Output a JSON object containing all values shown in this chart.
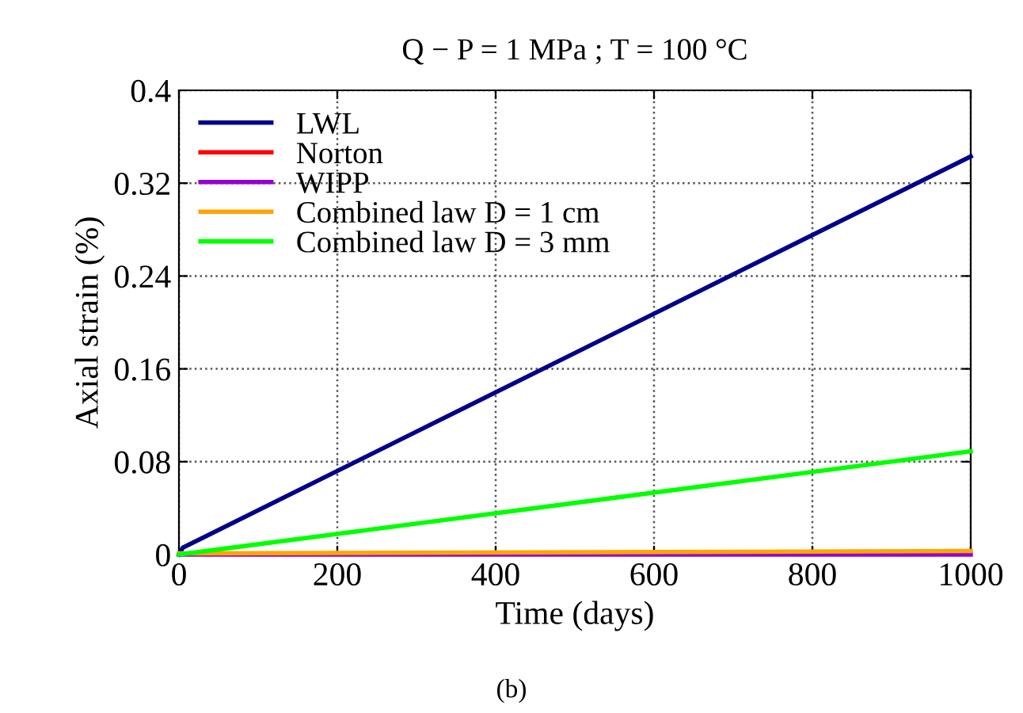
{
  "chart_data": {
    "type": "line",
    "title": "Q − P = 1 MPa ; T = 100 °C",
    "xlabel": "Time (days)",
    "ylabel": "Axial strain (%)",
    "annotations": [
      "(b)"
    ],
    "xlim": [
      0,
      1000
    ],
    "xticks": [
      0,
      200,
      400,
      600,
      800,
      1000
    ],
    "ylim": [
      0,
      0.4
    ],
    "yticks": [
      0,
      0.08,
      0.16,
      0.24,
      0.32,
      0.4
    ],
    "grid": true,
    "legend": "top left",
    "line_style": "solid",
    "marker": "none",
    "series": [
      {
        "name": "LWL",
        "color": "#00008b",
        "x": [
          0,
          5,
          1000
        ],
        "values": [
          0,
          0.006,
          0.343
        ]
      },
      {
        "name": "Norton",
        "color": "#ff0000",
        "values": [
          null
        ]
      },
      {
        "name": "WIPP",
        "color": "#9400d3",
        "x": [
          0,
          1000
        ],
        "values": [
          0,
          0
        ]
      },
      {
        "name": "Combined law D = 1 cm",
        "color": "#ffa500",
        "x": [
          0,
          1000
        ],
        "values": [
          0.001,
          0.003
        ]
      },
      {
        "name": "Combined law D = 3 mm",
        "color": "#00ff00",
        "x": [
          0,
          1000
        ],
        "values": [
          0,
          0.089
        ]
      }
    ]
  }
}
